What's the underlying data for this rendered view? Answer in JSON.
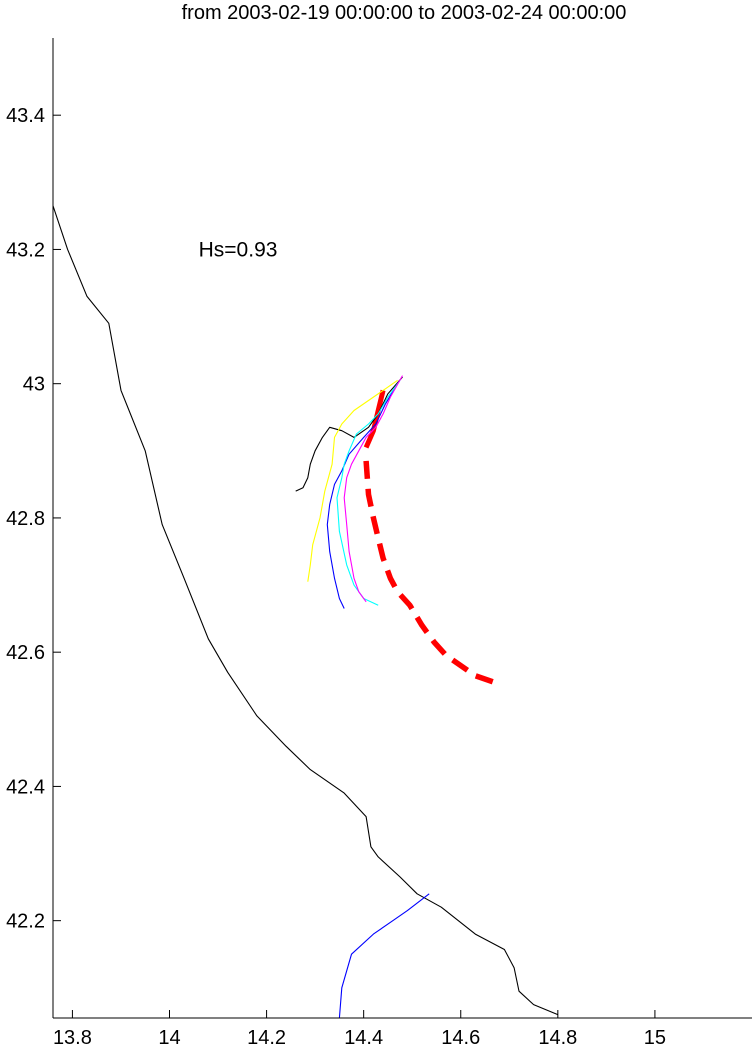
{
  "chart_data": {
    "type": "line",
    "title": "from 2003-02-19 00:00:00 to 2003-02-24 00:00:00",
    "xlabel": "",
    "ylabel": "",
    "xlim": [
      13.76,
      15.2
    ],
    "ylim": [
      42.055,
      43.515
    ],
    "xticks": [
      13.8,
      14,
      14.2,
      14.4,
      14.6,
      14.8,
      15
    ],
    "xtick_labels": [
      "13.8",
      "14",
      "14.2",
      "14.4",
      "14.6",
      "14.8",
      "15"
    ],
    "yticks": [
      42.2,
      42.4,
      42.6,
      42.8,
      43,
      43.2,
      43.4
    ],
    "ytick_labels": [
      "42.2",
      "42.4",
      "42.6",
      "42.8",
      "43",
      "43.2",
      "43.4"
    ],
    "grid": false,
    "annotations": [
      {
        "text": "Hs=0.93",
        "x": 14.06,
        "y": 43.2
      }
    ],
    "series": [
      {
        "key": "coastline",
        "color": "#000000",
        "style": "solid",
        "points": [
          [
            13.76,
            43.265
          ],
          [
            13.79,
            43.2
          ],
          [
            13.83,
            43.13
          ],
          [
            13.875,
            43.09
          ],
          [
            13.9,
            42.99
          ],
          [
            13.95,
            42.9
          ],
          [
            13.985,
            42.79
          ],
          [
            14.03,
            42.71
          ],
          [
            14.08,
            42.62
          ],
          [
            14.12,
            42.57
          ],
          [
            14.18,
            42.505
          ],
          [
            14.24,
            42.46
          ],
          [
            14.29,
            42.425
          ],
          [
            14.36,
            42.39
          ],
          [
            14.405,
            42.355
          ],
          [
            14.415,
            42.31
          ],
          [
            14.43,
            42.295
          ],
          [
            14.475,
            42.265
          ],
          [
            14.51,
            42.24
          ],
          [
            14.56,
            42.22
          ],
          [
            14.63,
            42.18
          ],
          [
            14.69,
            42.157
          ],
          [
            14.71,
            42.13
          ],
          [
            14.72,
            42.095
          ],
          [
            14.75,
            42.075
          ],
          [
            14.8,
            42.06
          ]
        ]
      },
      {
        "key": "river",
        "color": "#0000ff",
        "style": "solid",
        "points": [
          [
            14.35,
            42.055
          ],
          [
            14.355,
            42.1
          ],
          [
            14.375,
            42.15
          ],
          [
            14.42,
            42.18
          ],
          [
            14.46,
            42.2
          ],
          [
            14.49,
            42.215
          ],
          [
            14.535,
            42.24
          ]
        ]
      },
      {
        "key": "red-track",
        "color": "#ff0000",
        "style": "dashed",
        "points": [
          [
            14.405,
            42.885
          ],
          [
            14.41,
            42.835
          ],
          [
            14.42,
            42.8
          ],
          [
            14.43,
            42.77
          ],
          [
            14.44,
            42.74
          ],
          [
            14.455,
            42.71
          ],
          [
            14.47,
            42.69
          ],
          [
            14.495,
            42.67
          ],
          [
            14.52,
            42.64
          ],
          [
            14.545,
            42.615
          ],
          [
            14.57,
            42.595
          ],
          [
            14.6,
            42.58
          ],
          [
            14.63,
            42.565
          ],
          [
            14.67,
            42.555
          ]
        ]
      },
      {
        "key": "red-track-upper",
        "color": "#ff0000",
        "style": "solid-thick",
        "points": [
          [
            14.44,
            42.99
          ],
          [
            14.43,
            42.96
          ],
          [
            14.42,
            42.93
          ],
          [
            14.405,
            42.905
          ]
        ]
      },
      {
        "key": "black-track",
        "color": "#000000",
        "style": "solid",
        "points": [
          [
            14.48,
            43.01
          ],
          [
            14.45,
            42.985
          ],
          [
            14.43,
            42.955
          ],
          [
            14.41,
            42.935
          ],
          [
            14.38,
            42.92
          ],
          [
            14.355,
            42.93
          ],
          [
            14.33,
            42.935
          ],
          [
            14.315,
            42.92
          ],
          [
            14.3,
            42.9
          ],
          [
            14.29,
            42.88
          ],
          [
            14.285,
            42.86
          ],
          [
            14.275,
            42.845
          ],
          [
            14.26,
            42.84
          ]
        ]
      },
      {
        "key": "yellow-track",
        "color": "#ffff00",
        "style": "solid",
        "points": [
          [
            14.47,
            43.005
          ],
          [
            14.44,
            42.99
          ],
          [
            14.41,
            42.975
          ],
          [
            14.38,
            42.96
          ],
          [
            14.355,
            42.94
          ],
          [
            14.34,
            42.92
          ],
          [
            14.335,
            42.88
          ],
          [
            14.32,
            42.84
          ],
          [
            14.31,
            42.8
          ],
          [
            14.295,
            42.76
          ],
          [
            14.29,
            42.73
          ],
          [
            14.285,
            42.705
          ]
        ]
      },
      {
        "key": "blue-track",
        "color": "#0000ff",
        "style": "solid",
        "points": [
          [
            14.47,
            43.0
          ],
          [
            14.445,
            42.97
          ],
          [
            14.425,
            42.94
          ],
          [
            14.4,
            42.92
          ],
          [
            14.37,
            42.895
          ],
          [
            14.355,
            42.87
          ],
          [
            14.34,
            42.85
          ],
          [
            14.33,
            42.82
          ],
          [
            14.325,
            42.79
          ],
          [
            14.33,
            42.75
          ],
          [
            14.34,
            42.71
          ],
          [
            14.35,
            42.68
          ],
          [
            14.36,
            42.665
          ]
        ]
      },
      {
        "key": "cyan-track",
        "color": "#00ffff",
        "style": "solid",
        "points": [
          [
            14.475,
            43.005
          ],
          [
            14.45,
            42.98
          ],
          [
            14.43,
            42.955
          ],
          [
            14.41,
            42.94
          ],
          [
            14.385,
            42.925
          ],
          [
            14.37,
            42.9
          ],
          [
            14.36,
            42.88
          ],
          [
            14.355,
            42.86
          ],
          [
            14.345,
            42.83
          ],
          [
            14.35,
            42.78
          ],
          [
            14.365,
            42.73
          ],
          [
            14.38,
            42.7
          ],
          [
            14.4,
            42.68
          ],
          [
            14.43,
            42.67
          ]
        ]
      },
      {
        "key": "magenta-track",
        "color": "#ff00ff",
        "style": "solid",
        "points": [
          [
            14.48,
            43.012
          ],
          [
            14.455,
            42.98
          ],
          [
            14.44,
            42.955
          ],
          [
            14.425,
            42.935
          ],
          [
            14.405,
            42.92
          ],
          [
            14.39,
            42.9
          ],
          [
            14.375,
            42.88
          ],
          [
            14.365,
            42.86
          ],
          [
            14.36,
            42.83
          ],
          [
            14.365,
            42.79
          ],
          [
            14.37,
            42.75
          ],
          [
            14.38,
            42.71
          ],
          [
            14.39,
            42.69
          ],
          [
            14.405,
            42.675
          ]
        ]
      }
    ]
  }
}
